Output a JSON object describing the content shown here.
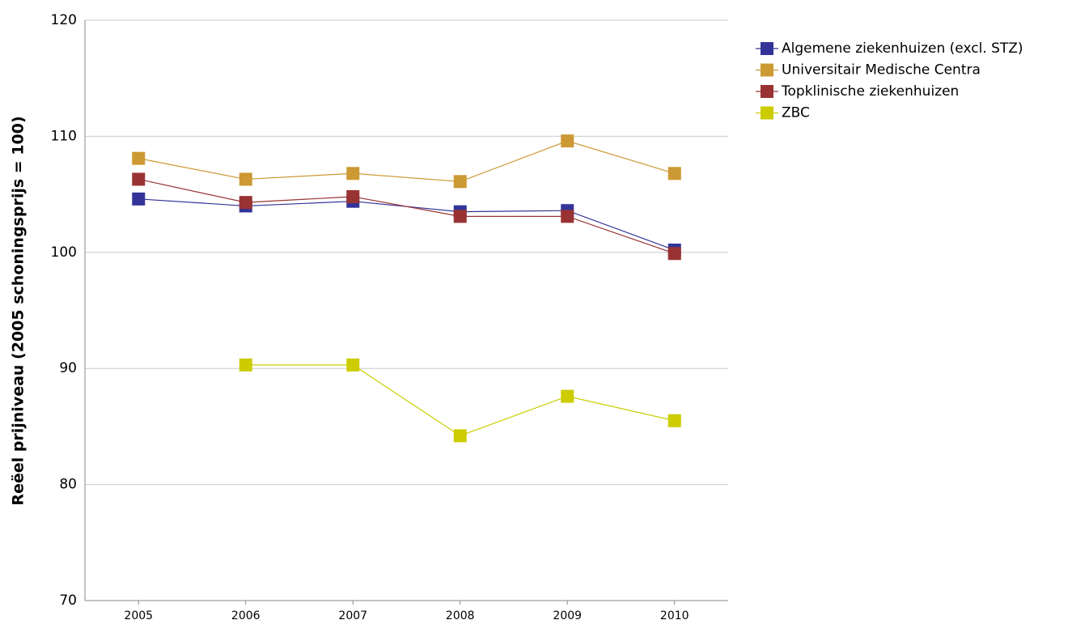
{
  "chart_data": {
    "type": "line",
    "y_label": "Reëel prijniveau (2005 schoningsprijs = 100)",
    "categories": [
      "2005",
      "2006",
      "2007",
      "2008",
      "2009",
      "2010"
    ],
    "series": [
      {
        "name": "Algemene ziekenhuizen (excl. STZ)",
        "color": "#333399",
        "values": [
          104.6,
          104.0,
          104.4,
          103.5,
          103.6,
          100.2
        ]
      },
      {
        "name": "Universitair Medische Centra",
        "color": "#cc9933",
        "values": [
          108.1,
          106.3,
          106.8,
          106.1,
          109.6,
          106.8
        ]
      },
      {
        "name": "Topklinische ziekenhuizen",
        "color": "#993333",
        "values": [
          106.3,
          104.3,
          104.8,
          103.1,
          103.1,
          99.9
        ]
      },
      {
        "name": "ZBC",
        "color": "#cccc00",
        "values": [
          null,
          90.3,
          90.3,
          84.2,
          87.6,
          85.5
        ]
      }
    ],
    "ylim": [
      70,
      120
    ],
    "yticks": [
      70,
      80,
      90,
      100,
      110,
      120
    ],
    "grid": true,
    "legend": "right"
  }
}
